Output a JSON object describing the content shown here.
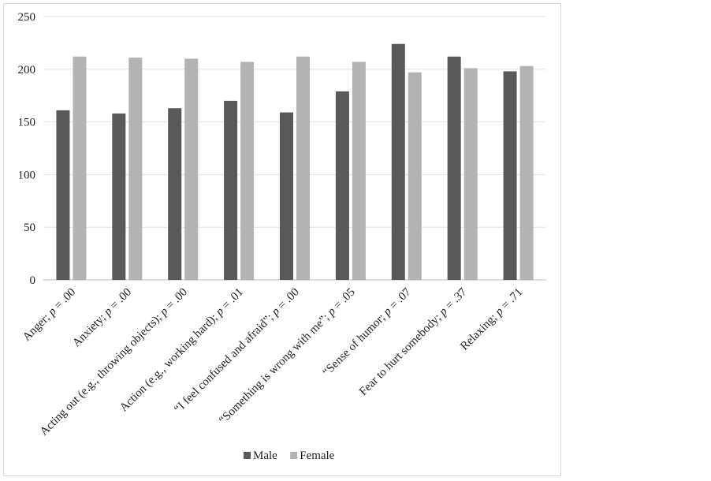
{
  "chart_data": {
    "type": "bar",
    "title": "",
    "xlabel": "",
    "ylabel": "",
    "ylim": [
      0,
      250
    ],
    "yticks": [
      0,
      50,
      100,
      150,
      200,
      250
    ],
    "grid": "horizontal",
    "legend_position": "bottom",
    "categories": [
      [
        "Anger; ",
        "p",
        " = .00"
      ],
      [
        "Anxiety; ",
        "p",
        " = .00"
      ],
      [
        "Acting out (e.g., throwing objects); ",
        "p",
        " = .00"
      ],
      [
        "Action (e.g., working hard); ",
        "p",
        " = .01"
      ],
      [
        "“I feel confused and afraid”; ",
        "p",
        " = .00"
      ],
      [
        "“Something is wrong with me”; ",
        "p",
        " = .05"
      ],
      [
        "“Sense of humor; ",
        "p",
        " = .07"
      ],
      [
        "Fear to hurt somebody; ",
        "p",
        " = .37"
      ],
      [
        "Relaxing; ",
        "p",
        " = .71"
      ]
    ],
    "series": [
      {
        "name": "Male",
        "color": "#595959",
        "values": [
          161,
          158,
          163,
          170,
          159,
          179,
          224,
          212,
          198
        ]
      },
      {
        "name": "Female",
        "color": "#b3b3b3",
        "values": [
          212,
          211,
          210,
          207,
          212,
          207,
          197,
          201,
          203
        ]
      }
    ]
  }
}
